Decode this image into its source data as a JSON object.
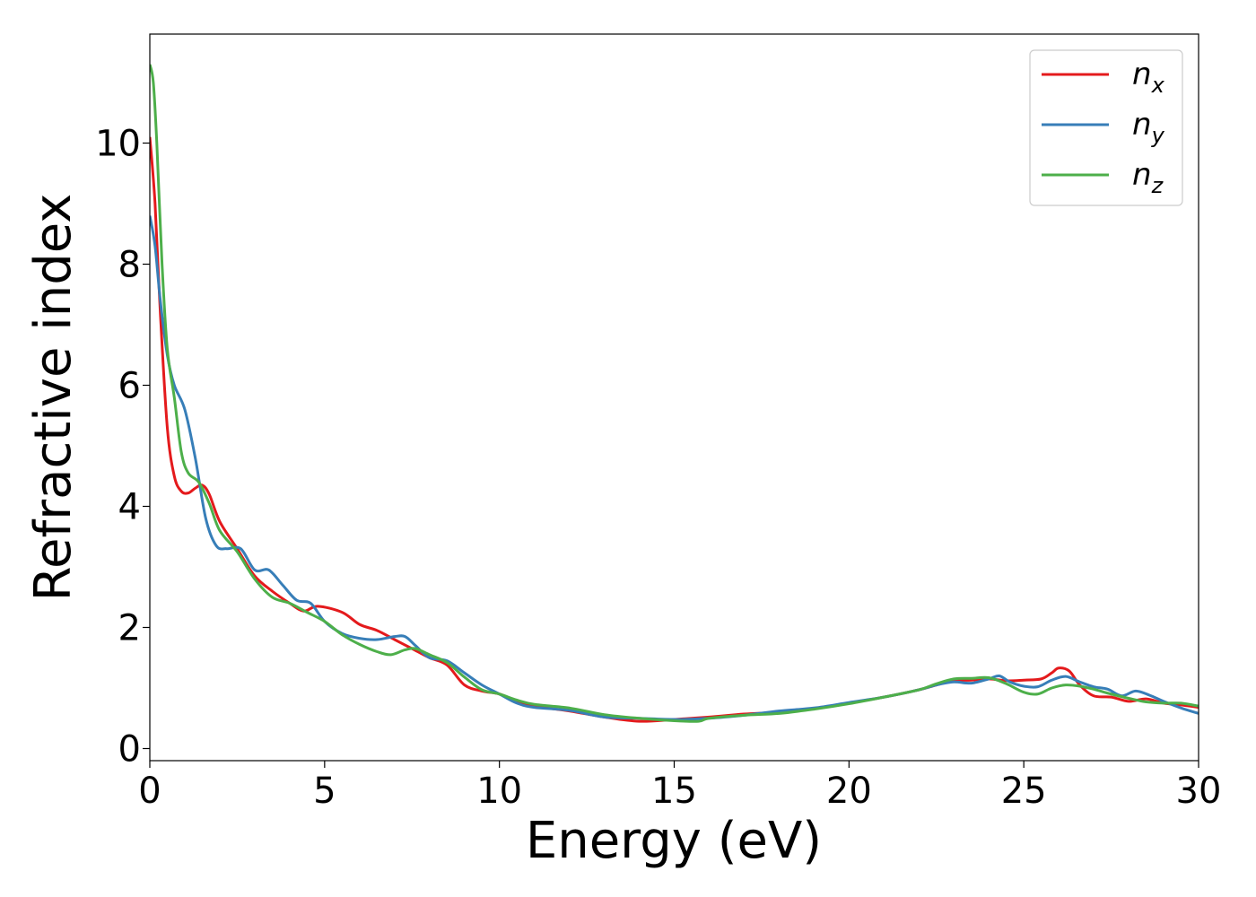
{
  "chart_data": {
    "type": "line",
    "xlabel": "Energy (eV)",
    "ylabel": "Refractive index",
    "xlim": [
      0,
      30
    ],
    "ylim": [
      -0.2,
      11.8
    ],
    "xticks": [
      0,
      5,
      10,
      15,
      20,
      25,
      30
    ],
    "yticks": [
      0,
      2,
      4,
      6,
      8,
      10
    ],
    "xtick_labels": [
      "0",
      "5",
      "10",
      "15",
      "20",
      "25",
      "30"
    ],
    "ytick_labels": [
      "0",
      "2",
      "4",
      "6",
      "8",
      "10"
    ],
    "grid": false,
    "legend_position": "top-right",
    "series": [
      {
        "name": "n_x",
        "label_base": "n",
        "label_sub": "x",
        "color": "#e41a1c",
        "x": [
          0,
          0.15,
          0.3,
          0.5,
          0.7,
          0.9,
          1.1,
          1.3,
          1.5,
          1.7,
          2.0,
          2.5,
          3.0,
          3.5,
          4.0,
          4.4,
          4.8,
          5.5,
          6.0,
          6.5,
          7.0,
          7.5,
          8.0,
          8.5,
          9.0,
          9.5,
          10.0,
          10.5,
          11.0,
          12.0,
          13.0,
          14.0,
          15.0,
          16.0,
          17.0,
          18.0,
          19.0,
          20.0,
          21.0,
          22.0,
          22.5,
          23.0,
          23.5,
          24.0,
          24.5,
          25.0,
          25.5,
          25.8,
          26.0,
          26.3,
          26.6,
          27.0,
          27.5,
          28.0,
          28.5,
          29.0,
          29.5,
          30.0
        ],
        "y": [
          10.1,
          9.0,
          7.2,
          5.3,
          4.5,
          4.25,
          4.22,
          4.3,
          4.35,
          4.2,
          3.75,
          3.3,
          2.85,
          2.6,
          2.4,
          2.27,
          2.35,
          2.25,
          2.05,
          1.95,
          1.8,
          1.65,
          1.5,
          1.38,
          1.05,
          0.95,
          0.9,
          0.78,
          0.7,
          0.62,
          0.52,
          0.45,
          0.48,
          0.52,
          0.57,
          0.6,
          0.66,
          0.75,
          0.85,
          0.97,
          1.05,
          1.12,
          1.13,
          1.15,
          1.12,
          1.13,
          1.15,
          1.25,
          1.33,
          1.28,
          1.05,
          0.87,
          0.85,
          0.78,
          0.82,
          0.75,
          0.72,
          0.68
        ]
      },
      {
        "name": "n_y",
        "label_base": "n",
        "label_sub": "y",
        "color": "#377eb8",
        "x": [
          0,
          0.15,
          0.3,
          0.5,
          0.7,
          1.0,
          1.3,
          1.6,
          1.9,
          2.2,
          2.6,
          3.0,
          3.4,
          3.8,
          4.2,
          4.6,
          5.0,
          5.5,
          6.0,
          6.5,
          7.0,
          7.3,
          7.6,
          8.0,
          8.5,
          9.0,
          9.5,
          10.0,
          10.5,
          11.0,
          12.0,
          13.0,
          14.0,
          15.0,
          16.0,
          17.0,
          18.0,
          19.0,
          20.0,
          21.0,
          22.0,
          22.5,
          23.0,
          23.5,
          24.0,
          24.3,
          24.6,
          25.0,
          25.4,
          25.8,
          26.2,
          26.6,
          27.0,
          27.4,
          27.8,
          28.2,
          28.6,
          29.0,
          29.5,
          30.0
        ],
        "y": [
          8.8,
          8.3,
          7.4,
          6.5,
          6.0,
          5.6,
          4.8,
          3.8,
          3.35,
          3.3,
          3.3,
          2.95,
          2.95,
          2.7,
          2.45,
          2.4,
          2.1,
          1.9,
          1.82,
          1.8,
          1.85,
          1.85,
          1.7,
          1.5,
          1.45,
          1.25,
          1.05,
          0.9,
          0.75,
          0.68,
          0.63,
          0.52,
          0.5,
          0.48,
          0.5,
          0.55,
          0.62,
          0.67,
          0.76,
          0.85,
          0.97,
          1.05,
          1.1,
          1.08,
          1.15,
          1.2,
          1.1,
          1.03,
          1.02,
          1.13,
          1.19,
          1.1,
          1.02,
          0.98,
          0.87,
          0.95,
          0.88,
          0.78,
          0.67,
          0.58
        ]
      },
      {
        "name": "n_z",
        "label_base": "n",
        "label_sub": "z",
        "color": "#4daf4a",
        "x": [
          0,
          0.1,
          0.2,
          0.35,
          0.5,
          0.7,
          0.9,
          1.1,
          1.4,
          1.7,
          2.0,
          2.5,
          3.0,
          3.5,
          4.0,
          4.5,
          5.0,
          5.5,
          6.0,
          6.5,
          6.9,
          7.3,
          7.6,
          8.0,
          8.5,
          9.0,
          9.5,
          10.0,
          10.5,
          11.0,
          12.0,
          13.0,
          14.0,
          15.0,
          15.7,
          16.0,
          17.0,
          18.0,
          19.0,
          20.0,
          21.0,
          22.0,
          22.5,
          23.0,
          23.5,
          24.0,
          24.5,
          25.0,
          25.4,
          25.8,
          26.2,
          26.6,
          27.0,
          27.5,
          28.0,
          28.5,
          29.0,
          29.5,
          30.0
        ],
        "y": [
          11.3,
          11.0,
          10.0,
          8.0,
          6.6,
          5.8,
          4.9,
          4.55,
          4.4,
          4.05,
          3.6,
          3.25,
          2.8,
          2.5,
          2.4,
          2.25,
          2.1,
          1.88,
          1.72,
          1.6,
          1.55,
          1.63,
          1.65,
          1.55,
          1.42,
          1.18,
          0.97,
          0.9,
          0.8,
          0.73,
          0.67,
          0.56,
          0.5,
          0.46,
          0.45,
          0.5,
          0.55,
          0.58,
          0.65,
          0.74,
          0.85,
          0.97,
          1.07,
          1.15,
          1.16,
          1.17,
          1.07,
          0.93,
          0.9,
          1.0,
          1.05,
          1.03,
          0.98,
          0.9,
          0.83,
          0.77,
          0.75,
          0.75,
          0.7
        ]
      }
    ]
  }
}
